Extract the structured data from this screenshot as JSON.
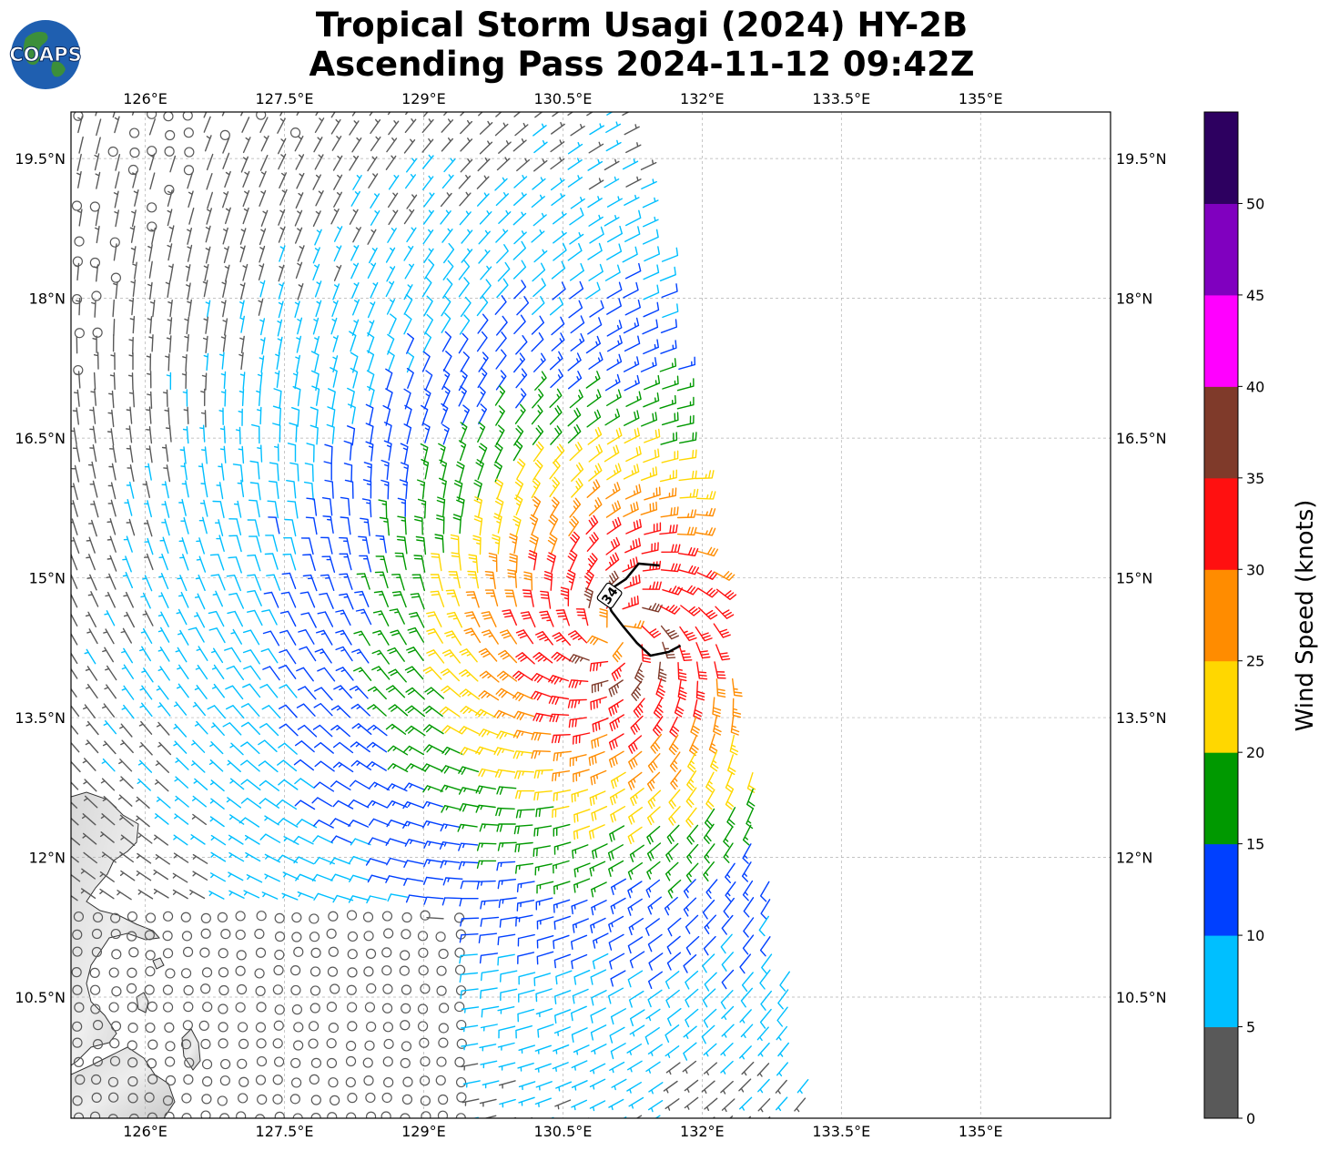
{
  "header": {
    "title_line1": "Tropical Storm Usagi (2024) HY-2B",
    "title_line2": "Ascending Pass 2024-11-12 09:42Z",
    "logo_text": "COAPS"
  },
  "map": {
    "lon_range": [
      125.2,
      136.4
    ],
    "lat_range": [
      9.2,
      20.0
    ],
    "lon_ticks": [
      "126°E",
      "127.5°E",
      "129°E",
      "130.5°E",
      "132°E",
      "133.5°E",
      "135°E"
    ],
    "lat_ticks": [
      "19.5°N",
      "18°N",
      "16.5°N",
      "15°N",
      "13.5°N",
      "12°N",
      "10.5°N"
    ],
    "grid": true,
    "storm_center": [
      131.1,
      14.4
    ],
    "wind_radius_label": "34",
    "wind_radius_color": "#000000"
  },
  "colorbar": {
    "label": "Wind Speed (knots)",
    "ticks": [
      "0",
      "5",
      "10",
      "15",
      "20",
      "25",
      "30",
      "35",
      "40",
      "45",
      "50"
    ],
    "colors": [
      "#595959",
      "#00bfff",
      "#0040ff",
      "#009900",
      "#ffd700",
      "#ff8c00",
      "#ff1010",
      "#7f3a2a",
      "#ff00ff",
      "#8000bf",
      "#2d0060"
    ]
  }
}
